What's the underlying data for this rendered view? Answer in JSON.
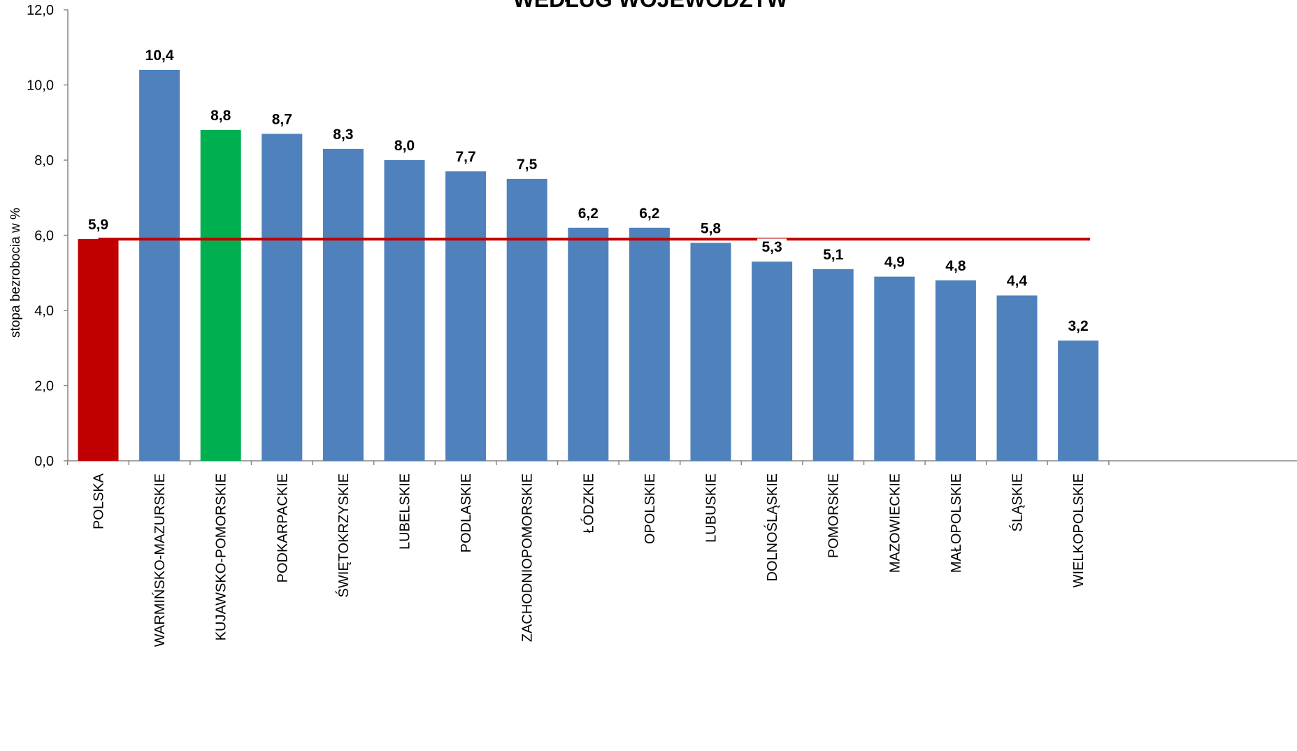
{
  "chart_data": {
    "type": "bar",
    "title": "WEDŁUG WOJEWÓDZTW",
    "ylabel": "stopa bezrobocia w %",
    "xlabel": "",
    "ylim": [
      0,
      12
    ],
    "yticks": [
      "0,0",
      "2,0",
      "4,0",
      "6,0",
      "8,0",
      "10,0",
      "12,0"
    ],
    "grid": false,
    "categories": [
      "POLSKA",
      "WARMIŃSKO-MAZURSKIE",
      "KUJAWSKO-POMORSKIE",
      "PODKARPACKIE",
      "ŚWIĘTOKRZYSKIE",
      "LUBELSKIE",
      "PODLASKIE",
      "ZACHODNIOPOMORSKIE",
      "ŁÓDZKIE",
      "OPOLSKIE",
      "LUBUSKIE",
      "DOLNOŚLĄSKIE",
      "POMORSKIE",
      "MAZOWIECKIE",
      "MAŁOPOLSKIE",
      "ŚLĄSKIE",
      "WIELKOPOLSKIE"
    ],
    "values": [
      5.9,
      10.4,
      8.8,
      8.7,
      8.3,
      8.0,
      7.7,
      7.5,
      6.2,
      6.2,
      5.8,
      5.3,
      5.1,
      4.9,
      4.8,
      4.4,
      3.2
    ],
    "value_labels": [
      "5,9",
      "10,4",
      "8,8",
      "8,7",
      "8,3",
      "8,0",
      "7,7",
      "7,5",
      "6,2",
      "6,2",
      "5,8",
      "5,3",
      "5,1",
      "4,9",
      "4,8",
      "4,4",
      "3,2"
    ],
    "bar_colors": [
      "#c00000",
      "#4f81bd",
      "#00b050",
      "#4f81bd",
      "#4f81bd",
      "#4f81bd",
      "#4f81bd",
      "#4f81bd",
      "#4f81bd",
      "#4f81bd",
      "#4f81bd",
      "#4f81bd",
      "#4f81bd",
      "#4f81bd",
      "#4f81bd",
      "#4f81bd",
      "#4f81bd"
    ],
    "reference_line": {
      "value": 5.9,
      "color": "#c00000"
    }
  }
}
